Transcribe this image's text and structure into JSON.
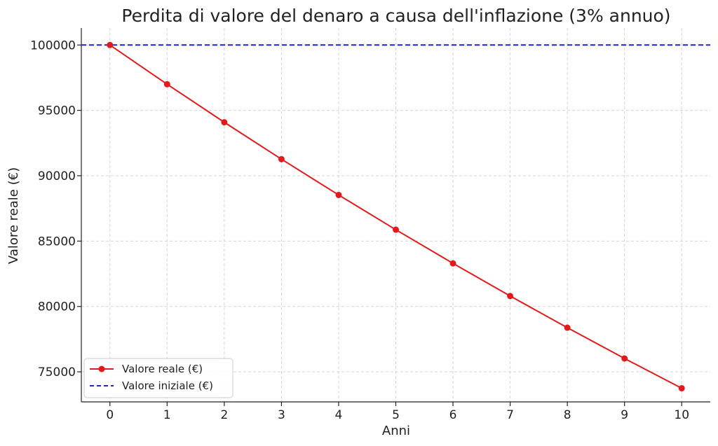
{
  "colors": {
    "real_value": "#e31a1c",
    "initial_value": "#1f24c8"
  },
  "chart_data": {
    "type": "line",
    "title": "Perdita di valore del denaro a causa dell'inflazione (3% annuo)",
    "xlabel": "Anni",
    "ylabel": "Valore reale (€)",
    "x": [
      0,
      1,
      2,
      3,
      4,
      5,
      6,
      7,
      8,
      9,
      10
    ],
    "x_ticks": [
      "0",
      "1",
      "2",
      "3",
      "4",
      "5",
      "6",
      "7",
      "8",
      "9",
      "10"
    ],
    "y_ticks": [
      "75000",
      "80000",
      "85000",
      "90000",
      "95000",
      "100000"
    ],
    "xlim": [
      -0.5,
      10.5
    ],
    "ylim": [
      72700,
      101300
    ],
    "grid": true,
    "legend_position": "lower-left",
    "series": [
      {
        "name": "Valore reale (€)",
        "style": "solid-line-with-markers",
        "color": "#e31a1c",
        "values": [
          100000,
          97000,
          94090,
          91267,
          88529,
          85873,
          83297,
          80798,
          78374,
          76023,
          73742
        ]
      },
      {
        "name": "Valore iniziale (€)",
        "style": "dashed-horizontal-line",
        "color": "#1f24c8",
        "y": 100000
      }
    ]
  }
}
